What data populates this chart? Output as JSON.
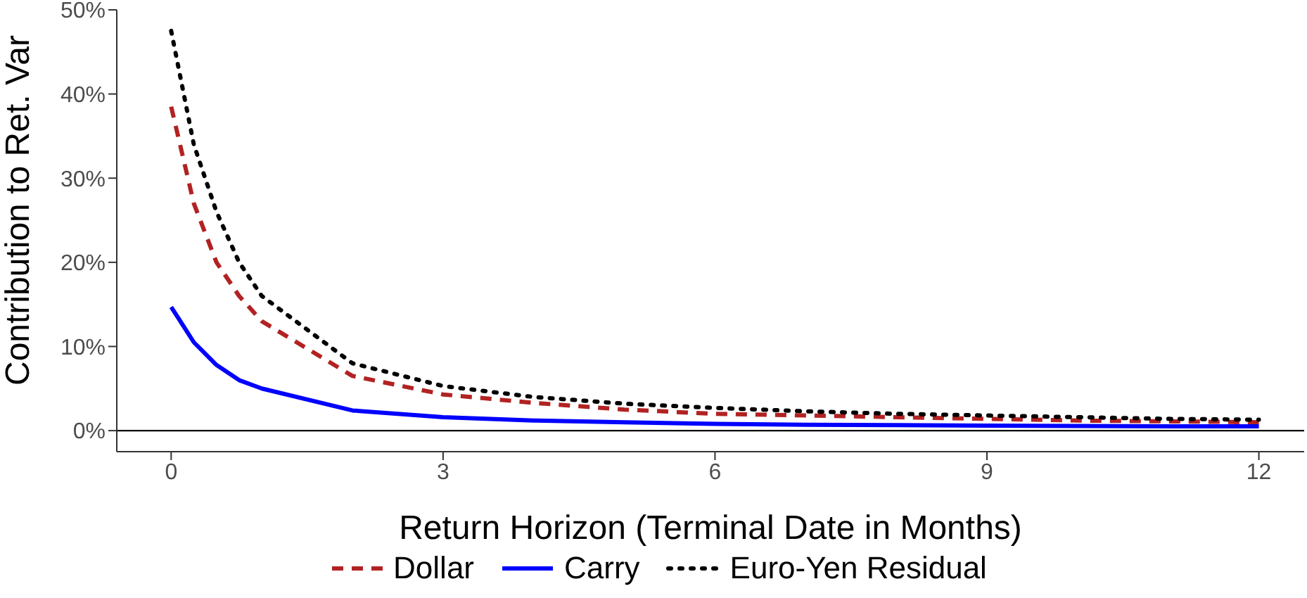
{
  "chart_data": {
    "type": "line",
    "xlabel": "Return Horizon (Terminal Date in Months)",
    "ylabel": "Contribution to Ret. Var",
    "x": [
      0,
      0.25,
      0.5,
      0.75,
      1,
      2,
      3,
      4,
      5,
      6,
      7,
      8,
      9,
      10,
      11,
      12
    ],
    "series": [
      {
        "name": "Dollar",
        "color": "#b22222",
        "line_style": "dashed",
        "values": [
          38.5,
          27,
          20,
          16,
          13,
          6.5,
          4.3,
          3.3,
          2.5,
          2.0,
          1.8,
          1.6,
          1.4,
          1.2,
          1.1,
          1.0
        ]
      },
      {
        "name": "Carry",
        "color": "#0000ff",
        "line_style": "solid",
        "values": [
          14.7,
          10.5,
          7.8,
          6,
          5,
          2.4,
          1.6,
          1.2,
          1.0,
          0.8,
          0.7,
          0.65,
          0.6,
          0.55,
          0.5,
          0.5
        ]
      },
      {
        "name": "Euro-Yen Residual",
        "color": "#000000",
        "line_style": "dotted",
        "values": [
          47.5,
          34,
          26,
          20,
          16,
          8,
          5.3,
          4,
          3.2,
          2.7,
          2.3,
          2.0,
          1.8,
          1.6,
          1.4,
          1.3
        ]
      }
    ],
    "xlim": [
      -0.6,
      12.5
    ],
    "xticks": [
      0,
      3,
      6,
      9,
      12
    ],
    "ylim": [
      -2.5,
      50
    ],
    "yticks": [
      {
        "value": 0,
        "label": "0%"
      },
      {
        "value": 10,
        "label": "10%"
      },
      {
        "value": 20,
        "label": "20%"
      },
      {
        "value": 30,
        "label": "30%"
      },
      {
        "value": 40,
        "label": "40%"
      },
      {
        "value": 50,
        "label": "50%"
      }
    ],
    "ref_lines": [
      {
        "axis": "y",
        "value": 0,
        "color": "#000000"
      }
    ],
    "grid": false,
    "legend": "bottom",
    "marker": "none"
  }
}
